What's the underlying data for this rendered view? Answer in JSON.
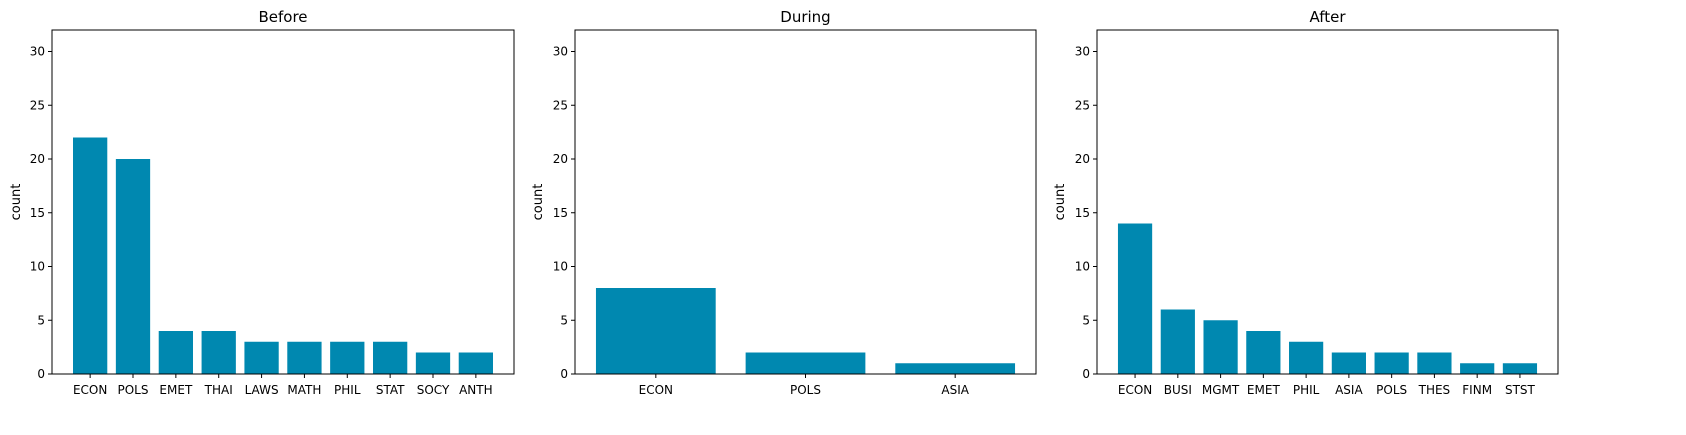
{
  "figure": {
    "bar_color": "#0088b0"
  },
  "chart_data": [
    {
      "type": "bar",
      "title": "Before",
      "xlabel": "",
      "ylabel": "count",
      "ylim": [
        0,
        32
      ],
      "yticks": [
        0,
        5,
        10,
        15,
        20,
        25,
        30
      ],
      "categories": [
        "ECON",
        "POLS",
        "EMET",
        "THAI",
        "LAWS",
        "MATH",
        "PHIL",
        "STAT",
        "SOCY",
        "ANTH"
      ],
      "values": [
        22,
        20,
        4,
        4,
        3,
        3,
        3,
        3,
        2,
        2
      ]
    },
    {
      "type": "bar",
      "title": "During",
      "xlabel": "",
      "ylabel": "count",
      "ylim": [
        0,
        32
      ],
      "yticks": [
        0,
        5,
        10,
        15,
        20,
        25,
        30
      ],
      "categories": [
        "ECON",
        "POLS",
        "ASIA"
      ],
      "values": [
        8,
        2,
        1
      ]
    },
    {
      "type": "bar",
      "title": "After",
      "xlabel": "",
      "ylabel": "count",
      "ylim": [
        0,
        32
      ],
      "yticks": [
        0,
        5,
        10,
        15,
        20,
        25,
        30
      ],
      "categories": [
        "ECON",
        "BUSI",
        "MGMT",
        "EMET",
        "PHIL",
        "ASIA",
        "POLS",
        "THES",
        "FINM",
        "STST"
      ],
      "values": [
        14,
        6,
        5,
        4,
        3,
        2,
        2,
        2,
        1,
        1
      ]
    }
  ]
}
